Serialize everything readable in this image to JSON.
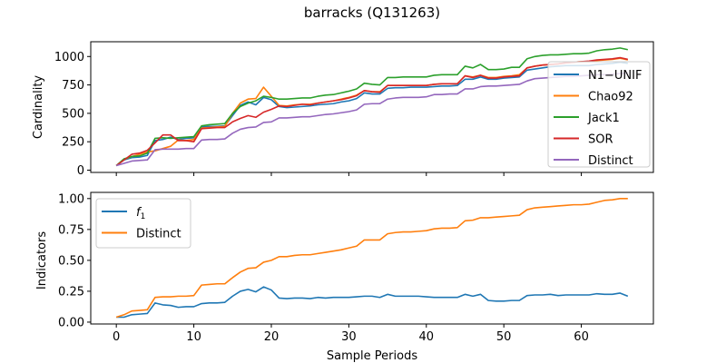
{
  "chart_data": [
    {
      "type": "line",
      "title": "barracks (Q131263)",
      "xlabel": "",
      "ylabel": "Cardinality",
      "xlim": [
        -3.3,
        69.3
      ],
      "ylim": [
        -20,
        1130
      ],
      "xticks": [
        0,
        10,
        20,
        30,
        40,
        50,
        60
      ],
      "yticks": [
        0,
        250,
        500,
        750,
        1000
      ],
      "show_x_tick_labels": false,
      "grid": false,
      "legend_position": "right",
      "series": [
        {
          "name": "N1−UNIF",
          "color": "#1f77b4",
          "x": [
            0,
            1,
            2,
            3,
            4,
            5,
            6,
            7,
            8,
            9,
            10,
            11,
            12,
            13,
            14,
            15,
            16,
            17,
            18,
            19,
            20,
            21,
            22,
            23,
            24,
            25,
            26,
            27,
            28,
            29,
            30,
            31,
            32,
            33,
            34,
            35,
            36,
            37,
            38,
            39,
            40,
            41,
            42,
            43,
            44,
            45,
            46,
            47,
            48,
            49,
            50,
            51,
            52,
            53,
            54,
            55,
            56,
            57,
            58,
            59,
            60,
            61,
            62,
            63,
            64,
            65,
            66
          ],
          "values": [
            40,
            90,
            110,
            115,
            130,
            260,
            270,
            290,
            270,
            280,
            285,
            380,
            385,
            385,
            390,
            480,
            570,
            600,
            575,
            640,
            620,
            560,
            550,
            555,
            560,
            565,
            575,
            580,
            585,
            600,
            610,
            630,
            680,
            670,
            670,
            720,
            725,
            725,
            730,
            730,
            730,
            735,
            740,
            740,
            745,
            800,
            800,
            820,
            800,
            800,
            810,
            815,
            820,
            880,
            890,
            900,
            910,
            915,
            920,
            920,
            920,
            920,
            930,
            935,
            940,
            950,
            940
          ]
        },
        {
          "name": "Chao92",
          "color": "#ff7f0e",
          "x": [
            0,
            1,
            2,
            3,
            4,
            5,
            6,
            7,
            8,
            9,
            10,
            11,
            12,
            13,
            14,
            15,
            16,
            17,
            18,
            19,
            20,
            21,
            22,
            23,
            24,
            25,
            26,
            27,
            28,
            29,
            30,
            31,
            32,
            33,
            34,
            35,
            36,
            37,
            38,
            39,
            40,
            41,
            42,
            43,
            44,
            45,
            46,
            47,
            48,
            49,
            50,
            51,
            52,
            53,
            54,
            55,
            56,
            57,
            58,
            59,
            60,
            61,
            62,
            63,
            64,
            65,
            66
          ],
          "values": [
            40,
            95,
            120,
            140,
            160,
            170,
            190,
            210,
            265,
            260,
            270,
            370,
            375,
            380,
            385,
            500,
            590,
            625,
            630,
            730,
            650,
            570,
            565,
            575,
            580,
            580,
            590,
            600,
            610,
            625,
            640,
            660,
            700,
            690,
            690,
            745,
            745,
            745,
            745,
            745,
            745,
            755,
            760,
            760,
            760,
            830,
            820,
            835,
            815,
            815,
            825,
            830,
            840,
            900,
            915,
            925,
            930,
            935,
            945,
            950,
            955,
            955,
            965,
            970,
            975,
            985,
            970
          ]
        },
        {
          "name": "Jack1",
          "color": "#2ca02c",
          "x": [
            0,
            1,
            2,
            3,
            4,
            5,
            6,
            7,
            8,
            9,
            10,
            11,
            12,
            13,
            14,
            15,
            16,
            17,
            18,
            19,
            20,
            21,
            22,
            23,
            24,
            25,
            26,
            27,
            28,
            29,
            30,
            31,
            32,
            33,
            34,
            35,
            36,
            37,
            38,
            39,
            40,
            41,
            42,
            43,
            44,
            45,
            46,
            47,
            48,
            49,
            50,
            51,
            52,
            53,
            54,
            55,
            56,
            57,
            58,
            59,
            60,
            61,
            62,
            63,
            64,
            65,
            66
          ],
          "values": [
            40,
            100,
            120,
            125,
            150,
            280,
            285,
            280,
            285,
            290,
            295,
            390,
            400,
            405,
            410,
            500,
            560,
            590,
            610,
            650,
            640,
            625,
            625,
            630,
            635,
            635,
            650,
            660,
            665,
            680,
            695,
            715,
            765,
            755,
            750,
            815,
            815,
            820,
            820,
            820,
            820,
            835,
            840,
            840,
            840,
            915,
            900,
            930,
            885,
            885,
            890,
            905,
            905,
            980,
            1000,
            1010,
            1015,
            1015,
            1020,
            1025,
            1025,
            1030,
            1050,
            1060,
            1065,
            1075,
            1060
          ]
        },
        {
          "name": "SOR",
          "color": "#d62728",
          "x": [
            0,
            1,
            2,
            3,
            4,
            5,
            6,
            7,
            8,
            9,
            10,
            11,
            12,
            13,
            14,
            15,
            16,
            17,
            18,
            19,
            20,
            21,
            22,
            23,
            24,
            25,
            26,
            27,
            28,
            29,
            30,
            31,
            32,
            33,
            34,
            35,
            36,
            37,
            38,
            39,
            40,
            41,
            42,
            43,
            44,
            45,
            46,
            47,
            48,
            49,
            50,
            51,
            52,
            53,
            54,
            55,
            56,
            57,
            58,
            59,
            60,
            61,
            62,
            63,
            64,
            65,
            66
          ],
          "values": [
            40,
            90,
            140,
            150,
            175,
            240,
            310,
            310,
            260,
            260,
            250,
            365,
            370,
            375,
            375,
            425,
            455,
            480,
            465,
            510,
            535,
            565,
            560,
            570,
            580,
            575,
            590,
            600,
            610,
            620,
            635,
            655,
            700,
            690,
            685,
            745,
            745,
            745,
            745,
            745,
            745,
            755,
            760,
            760,
            760,
            830,
            815,
            835,
            810,
            810,
            820,
            825,
            830,
            900,
            915,
            925,
            930,
            935,
            945,
            950,
            955,
            960,
            970,
            975,
            980,
            990,
            975
          ]
        },
        {
          "name": "Distinct",
          "color": "#9467bd",
          "x": [
            0,
            1,
            2,
            3,
            4,
            5,
            6,
            7,
            8,
            9,
            10,
            11,
            12,
            13,
            14,
            15,
            16,
            17,
            18,
            19,
            20,
            21,
            22,
            23,
            24,
            25,
            26,
            27,
            28,
            29,
            30,
            31,
            32,
            33,
            34,
            35,
            36,
            37,
            38,
            39,
            40,
            41,
            42,
            43,
            44,
            45,
            46,
            47,
            48,
            49,
            50,
            51,
            52,
            53,
            54,
            55,
            56,
            57,
            58,
            59,
            60,
            61,
            62,
            63,
            64,
            65,
            66
          ],
          "values": [
            40,
            60,
            80,
            85,
            90,
            180,
            185,
            185,
            185,
            190,
            190,
            265,
            270,
            270,
            275,
            325,
            360,
            375,
            380,
            420,
            425,
            460,
            460,
            465,
            470,
            470,
            480,
            490,
            495,
            505,
            515,
            530,
            580,
            585,
            585,
            625,
            635,
            640,
            640,
            640,
            645,
            665,
            665,
            670,
            670,
            715,
            715,
            735,
            740,
            740,
            745,
            750,
            755,
            785,
            805,
            810,
            815,
            820,
            825,
            825,
            830,
            835,
            840,
            840,
            845,
            850,
            855
          ]
        }
      ]
    },
    {
      "type": "line",
      "title": "",
      "xlabel": "Sample Periods",
      "ylabel": "Indicators",
      "xlim": [
        -3.3,
        69.3
      ],
      "ylim": [
        -0.015,
        1.05
      ],
      "xticks": [
        0,
        10,
        20,
        30,
        40,
        50,
        60
      ],
      "yticks": [
        0.0,
        0.25,
        0.5,
        0.75,
        1.0
      ],
      "ytick_labels": [
        "0.00",
        "0.25",
        "0.50",
        "0.75",
        "1.00"
      ],
      "show_x_tick_labels": true,
      "grid": false,
      "legend_position": "top-left",
      "series": [
        {
          "name": "f1",
          "color": "#1f77b4",
          "x": [
            0,
            1,
            2,
            3,
            4,
            5,
            6,
            7,
            8,
            9,
            10,
            11,
            12,
            13,
            14,
            15,
            16,
            17,
            18,
            19,
            20,
            21,
            22,
            23,
            24,
            25,
            26,
            27,
            28,
            29,
            30,
            31,
            32,
            33,
            34,
            35,
            36,
            37,
            38,
            39,
            40,
            41,
            42,
            43,
            44,
            45,
            46,
            47,
            48,
            49,
            50,
            51,
            52,
            53,
            54,
            55,
            56,
            57,
            58,
            59,
            60,
            61,
            62,
            63,
            64,
            65,
            66
          ],
          "values": [
            0.04,
            0.04,
            0.06,
            0.065,
            0.07,
            0.155,
            0.14,
            0.135,
            0.12,
            0.125,
            0.125,
            0.15,
            0.155,
            0.155,
            0.16,
            0.21,
            0.25,
            0.265,
            0.245,
            0.285,
            0.26,
            0.195,
            0.19,
            0.195,
            0.195,
            0.19,
            0.2,
            0.195,
            0.2,
            0.2,
            0.2,
            0.205,
            0.21,
            0.21,
            0.2,
            0.225,
            0.21,
            0.21,
            0.21,
            0.21,
            0.205,
            0.2,
            0.2,
            0.2,
            0.2,
            0.225,
            0.21,
            0.225,
            0.175,
            0.17,
            0.17,
            0.175,
            0.175,
            0.215,
            0.22,
            0.22,
            0.225,
            0.215,
            0.22,
            0.22,
            0.22,
            0.22,
            0.23,
            0.225,
            0.225,
            0.235,
            0.21
          ]
        },
        {
          "name": "Distinct",
          "color": "#ff7f0e",
          "x": [
            0,
            1,
            2,
            3,
            4,
            5,
            6,
            7,
            8,
            9,
            10,
            11,
            12,
            13,
            14,
            15,
            16,
            17,
            18,
            19,
            20,
            21,
            22,
            23,
            24,
            25,
            26,
            27,
            28,
            29,
            30,
            31,
            32,
            33,
            34,
            35,
            36,
            37,
            38,
            39,
            40,
            41,
            42,
            43,
            44,
            45,
            46,
            47,
            48,
            49,
            50,
            51,
            52,
            53,
            54,
            55,
            56,
            57,
            58,
            59,
            60,
            61,
            62,
            63,
            64,
            65,
            66
          ],
          "values": [
            0.04,
            0.06,
            0.09,
            0.095,
            0.1,
            0.2,
            0.205,
            0.205,
            0.21,
            0.21,
            0.215,
            0.3,
            0.305,
            0.31,
            0.31,
            0.36,
            0.405,
            0.435,
            0.44,
            0.485,
            0.5,
            0.53,
            0.53,
            0.54,
            0.545,
            0.545,
            0.555,
            0.565,
            0.575,
            0.585,
            0.6,
            0.615,
            0.665,
            0.665,
            0.665,
            0.715,
            0.725,
            0.73,
            0.73,
            0.735,
            0.74,
            0.755,
            0.76,
            0.76,
            0.765,
            0.82,
            0.825,
            0.845,
            0.845,
            0.85,
            0.855,
            0.86,
            0.865,
            0.91,
            0.925,
            0.93,
            0.935,
            0.94,
            0.945,
            0.95,
            0.95,
            0.955,
            0.97,
            0.985,
            0.99,
            1.0,
            1.0
          ]
        }
      ]
    }
  ]
}
